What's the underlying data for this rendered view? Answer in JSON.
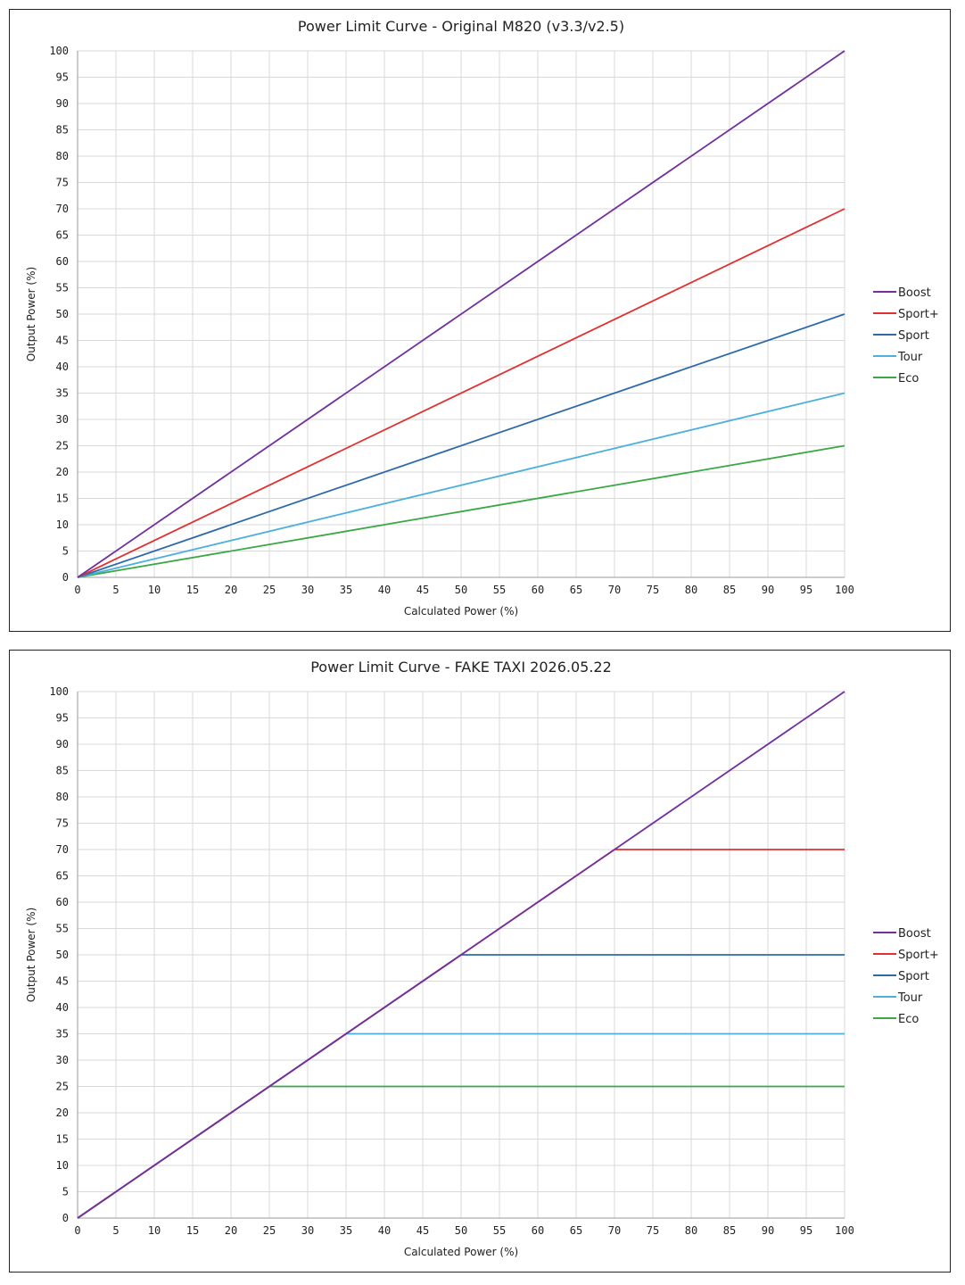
{
  "chart_data": [
    {
      "type": "line",
      "title": "Power Limit Curve - Original M820 (v3.3/v2.5)",
      "xlabel": "Calculated Power (%)",
      "ylabel": "Output Power (%)",
      "xlim": [
        0,
        100
      ],
      "ylim": [
        0,
        100
      ],
      "xticks": [
        0,
        5,
        10,
        15,
        20,
        25,
        30,
        35,
        40,
        45,
        50,
        55,
        60,
        65,
        70,
        75,
        80,
        85,
        90,
        95,
        100
      ],
      "yticks": [
        0,
        5,
        10,
        15,
        20,
        25,
        30,
        35,
        40,
        45,
        50,
        55,
        60,
        65,
        70,
        75,
        80,
        85,
        90,
        95,
        100
      ],
      "grid": true,
      "legend_position": "right",
      "series": [
        {
          "name": "Boost",
          "color": "#7030a0",
          "points": [
            [
              0,
              0
            ],
            [
              100,
              100
            ]
          ]
        },
        {
          "name": "Sport+",
          "color": "#e03030",
          "points": [
            [
              0,
              0
            ],
            [
              100,
              70
            ]
          ]
        },
        {
          "name": "Sport",
          "color": "#2e6aab",
          "points": [
            [
              0,
              0
            ],
            [
              100,
              50
            ]
          ]
        },
        {
          "name": "Tour",
          "color": "#4bafe0",
          "points": [
            [
              0,
              0
            ],
            [
              100,
              35
            ]
          ]
        },
        {
          "name": "Eco",
          "color": "#3aa845",
          "points": [
            [
              0,
              0
            ],
            [
              100,
              25
            ]
          ]
        }
      ]
    },
    {
      "type": "line",
      "title": "Power Limit Curve - FAKE TAXI 2026.05.22",
      "xlabel": "Calculated Power (%)",
      "ylabel": "Output Power (%)",
      "xlim": [
        0,
        100
      ],
      "ylim": [
        0,
        100
      ],
      "xticks": [
        0,
        5,
        10,
        15,
        20,
        25,
        30,
        35,
        40,
        45,
        50,
        55,
        60,
        65,
        70,
        75,
        80,
        85,
        90,
        95,
        100
      ],
      "yticks": [
        0,
        5,
        10,
        15,
        20,
        25,
        30,
        35,
        40,
        45,
        50,
        55,
        60,
        65,
        70,
        75,
        80,
        85,
        90,
        95,
        100
      ],
      "grid": true,
      "legend_position": "right",
      "series": [
        {
          "name": "Boost",
          "color": "#7030a0",
          "points": [
            [
              0,
              0
            ],
            [
              100,
              100
            ]
          ]
        },
        {
          "name": "Sport+",
          "color": "#e03030",
          "points": [
            [
              0,
              0
            ],
            [
              70,
              70
            ],
            [
              100,
              70
            ]
          ]
        },
        {
          "name": "Sport",
          "color": "#2e6aab",
          "points": [
            [
              0,
              0
            ],
            [
              50,
              50
            ],
            [
              100,
              50
            ]
          ]
        },
        {
          "name": "Tour",
          "color": "#4bafe0",
          "points": [
            [
              0,
              0
            ],
            [
              35,
              35
            ],
            [
              100,
              35
            ]
          ]
        },
        {
          "name": "Eco",
          "color": "#3aa845",
          "points": [
            [
              0,
              0
            ],
            [
              25,
              25
            ],
            [
              100,
              25
            ]
          ]
        }
      ]
    }
  ]
}
